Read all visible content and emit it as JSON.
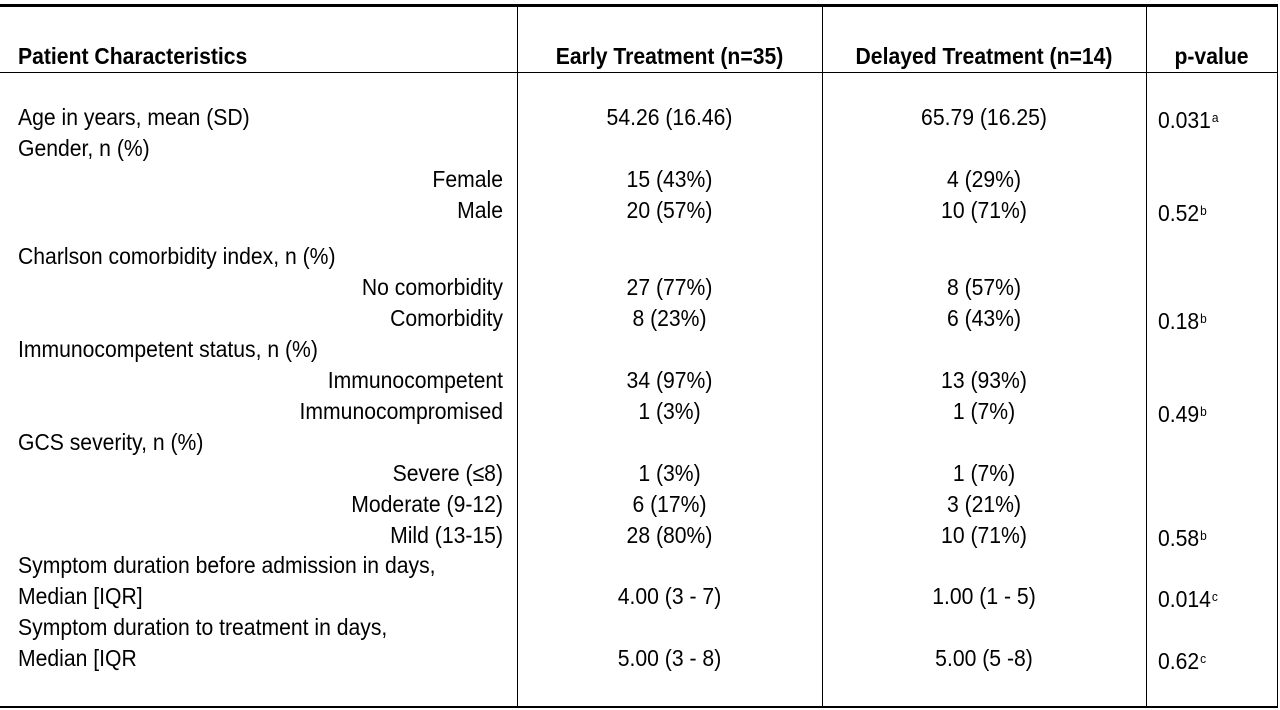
{
  "table": {
    "headers": [
      "Patient Characteristics",
      "Early Treatment (n=35)",
      "Delayed Treatment (n=14)",
      "p-value"
    ],
    "rows": [
      {
        "label": "Age in years, mean (SD)",
        "sub": false,
        "early": "54.26 (16.46)",
        "delayed": "65.79 (16.25)",
        "p": "0.031",
        "sup": "a"
      },
      {
        "label": "Gender, n (%)",
        "sub": false,
        "early": "",
        "delayed": "",
        "p": "",
        "sup": ""
      },
      {
        "label": "Female",
        "sub": true,
        "early": "15 (43%)",
        "delayed": "4 (29%)",
        "p": "",
        "sup": ""
      },
      {
        "label": "Male",
        "sub": true,
        "early": "20 (57%)",
        "delayed": "10 (71%)",
        "p": "0.52",
        "sup": "b"
      },
      {
        "label": "Charlson comorbidity index, n (%)",
        "sub": false,
        "early": "",
        "delayed": "",
        "p": "",
        "sup": ""
      },
      {
        "label": "No comorbidity",
        "sub": true,
        "early": "27 (77%)",
        "delayed": "8 (57%)",
        "p": "",
        "sup": ""
      },
      {
        "label": "Comorbidity",
        "sub": true,
        "early": "8 (23%)",
        "delayed": "6 (43%)",
        "p": "0.18",
        "sup": "b"
      },
      {
        "label": "Immunocompetent status, n (%)",
        "sub": false,
        "early": "",
        "delayed": "",
        "p": "",
        "sup": ""
      },
      {
        "label": "Immunocompetent",
        "sub": true,
        "early": "34 (97%)",
        "delayed": "13 (93%)",
        "p": "",
        "sup": ""
      },
      {
        "label": "Immunocompromised",
        "sub": true,
        "early": "1 (3%)",
        "delayed": "1 (7%)",
        "p": "0.49",
        "sup": "b"
      },
      {
        "label": "GCS severity, n (%)",
        "sub": false,
        "early": "",
        "delayed": "",
        "p": "",
        "sup": ""
      },
      {
        "label": "Severe (≤8)",
        "sub": true,
        "early": "1 (3%)",
        "delayed": "1 (7%)",
        "p": "",
        "sup": ""
      },
      {
        "label": "Moderate (9-12)",
        "sub": true,
        "early": "6 (17%)",
        "delayed": "3 (21%)",
        "p": "",
        "sup": ""
      },
      {
        "label": "Mild (13-15)",
        "sub": true,
        "early": "28 (80%)",
        "delayed": "10 (71%)",
        "p": "0.58",
        "sup": "b"
      },
      {
        "label": "Symptom duration before admission in days,",
        "sub": false,
        "early": "",
        "delayed": "",
        "p": "",
        "sup": ""
      },
      {
        "label": "Median [IQR]",
        "sub": false,
        "early": "4.00 (3 - 7)",
        "delayed": "1.00 (1 - 5)",
        "p": "0.014",
        "sup": "c"
      },
      {
        "label": "Symptom duration to treatment in days,",
        "sub": false,
        "early": "",
        "delayed": "",
        "p": "",
        "sup": ""
      },
      {
        "label": "Median [IQR",
        "sub": false,
        "early": "5.00 (3 - 8)",
        "delayed": "5.00 (5 -8)",
        "p": "0.62",
        "sup": "c"
      }
    ]
  }
}
